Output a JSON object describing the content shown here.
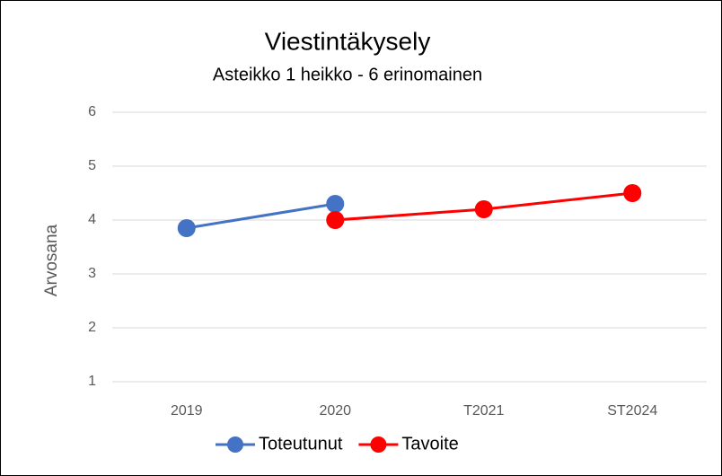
{
  "chart_data": {
    "type": "line",
    "title": "Viestintäkysely",
    "subtitle": "Asteikko 1 heikko - 6 erinomainen",
    "y_label": "Arvosana",
    "categories": [
      "2019",
      "2020",
      "T2021",
      "ST2024"
    ],
    "series": [
      {
        "name": "Toteutunut",
        "color": "#4472c4",
        "values": [
          3.85,
          4.3,
          null,
          null
        ]
      },
      {
        "name": "Tavoite",
        "color": "#ff0000",
        "values": [
          null,
          4.0,
          4.2,
          4.5
        ]
      }
    ],
    "ylim": [
      1,
      6
    ],
    "yticks": [
      1,
      2,
      3,
      4,
      5,
      6
    ],
    "grid": true,
    "legend": "bottom"
  }
}
